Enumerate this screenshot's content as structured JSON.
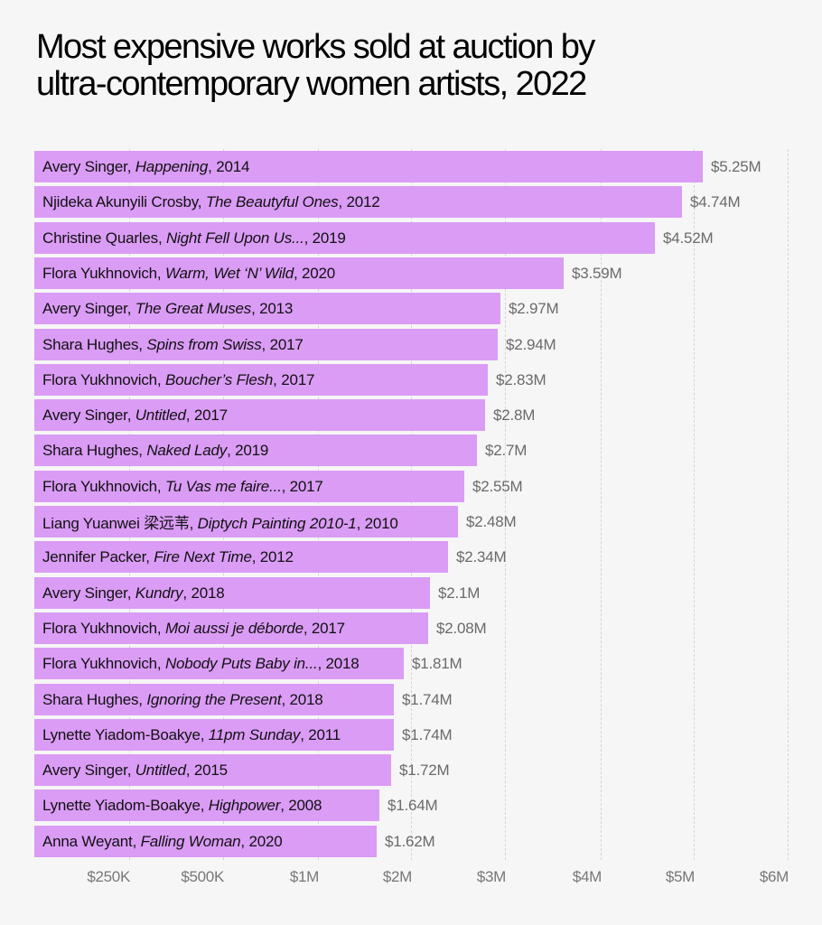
{
  "chart_data": {
    "type": "bar",
    "orientation": "horizontal",
    "title": "Most expensive works sold at auction by ultra-contemporary women artists, 2022",
    "title_lines": [
      "Most expensive works sold at auction by",
      "ultra-contemporary women artists, 2022"
    ],
    "xlabel": "",
    "ylabel": "",
    "grid": true,
    "bar_color": "#da9cf5",
    "background_color": "#f6f6f6",
    "x_ticks": [
      "$250K",
      "$500K",
      "$1M",
      "$2M",
      "$3M",
      "$4M",
      "$5M",
      "$6M"
    ],
    "x_tick_values": [
      250000,
      500000,
      1000000,
      2000000,
      3000000,
      4000000,
      5000000,
      6000000
    ],
    "rows": [
      {
        "artist": "Avery Singer",
        "work": "Happening",
        "year": "2014",
        "value": 5.25,
        "value_label": "$5.25M"
      },
      {
        "artist": "Njideka Akunyili Crosby",
        "work": "The Beautyful Ones",
        "year": "2012",
        "value": 4.74,
        "value_label": "$4.74M"
      },
      {
        "artist": "Christine Quarles",
        "work": "Night Fell Upon Us...",
        "year": "2019",
        "value": 4.52,
        "value_label": "$4.52M"
      },
      {
        "artist": "Flora Yukhnovich",
        "work": "Warm, Wet ‘N’ Wild",
        "year": "2020",
        "value": 3.59,
        "value_label": "$3.59M"
      },
      {
        "artist": "Avery Singer",
        "work": "The Great Muses",
        "year": "2013",
        "value": 2.97,
        "value_label": "$2.97M"
      },
      {
        "artist": "Shara Hughes",
        "work": "Spins from Swiss",
        "year": "2017",
        "value": 2.94,
        "value_label": "$2.94M"
      },
      {
        "artist": "Flora Yukhnovich",
        "work": "Boucher’s Flesh",
        "year": "2017",
        "value": 2.83,
        "value_label": "$2.83M"
      },
      {
        "artist": "Avery Singer",
        "work": "Untitled",
        "year": "2017",
        "value": 2.8,
        "value_label": "$2.8M"
      },
      {
        "artist": "Shara Hughes",
        "work": "Naked Lady",
        "year": "2019",
        "value": 2.7,
        "value_label": "$2.7M"
      },
      {
        "artist": "Flora Yukhnovich",
        "work": "Tu Vas me faire...",
        "year": "2017",
        "value": 2.55,
        "value_label": "$2.55M"
      },
      {
        "artist": "Liang Yuanwei 梁远苇",
        "work": "Diptych Painting 2010-1",
        "year": "2010",
        "value": 2.48,
        "value_label": "$2.48M"
      },
      {
        "artist": "Jennifer Packer",
        "work": "Fire Next Time",
        "year": "2012",
        "value": 2.34,
        "value_label": "$2.34M"
      },
      {
        "artist": "Avery Singer",
        "work": "Kundry",
        "year": "2018",
        "value": 2.1,
        "value_label": "$2.1M"
      },
      {
        "artist": "Flora Yukhnovich",
        "work": "Moi aussi je déborde",
        "year": "2017",
        "value": 2.08,
        "value_label": "$2.08M"
      },
      {
        "artist": "Flora Yukhnovich",
        "work": "Nobody Puts Baby in...",
        "year": "2018",
        "value": 1.81,
        "value_label": "$1.81M"
      },
      {
        "artist": "Shara Hughes",
        "work": "Ignoring the Present",
        "year": "2018",
        "value": 1.74,
        "value_label": "$1.74M"
      },
      {
        "artist": "Lynette Yiadom-Boakye",
        "work": "11pm Sunday",
        "year": "2011",
        "value": 1.74,
        "value_label": "$1.74M"
      },
      {
        "artist": "Avery Singer",
        "work": "Untitled",
        "year": "2015",
        "value": 1.72,
        "value_label": "$1.72M"
      },
      {
        "artist": "Lynette Yiadom-Boakye",
        "work": "Highpower",
        "year": "2008",
        "value": 1.64,
        "value_label": "$1.64M"
      },
      {
        "artist": "Anna Weyant",
        "work": "Falling Woman",
        "year": "2020",
        "value": 1.62,
        "value_label": "$1.62M"
      }
    ],
    "value_unit": "USD millions"
  }
}
